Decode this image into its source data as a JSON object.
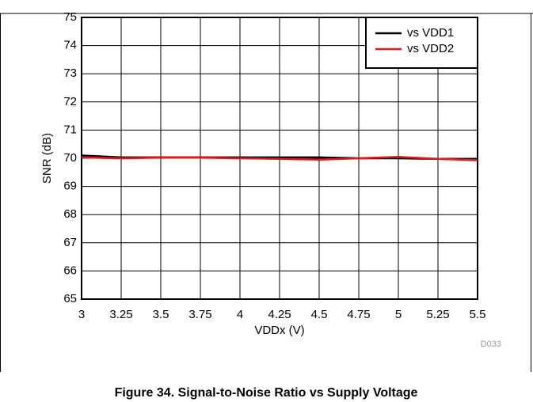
{
  "chart_data": {
    "type": "line",
    "caption": "Figure 34. Signal-to-Noise Ratio vs Supply Voltage",
    "xlabel": "VDDx (V)",
    "ylabel": "SNR (dB)",
    "note": "D033",
    "x": [
      3,
      3.25,
      3.5,
      3.75,
      4,
      4.25,
      4.5,
      4.75,
      5,
      5.25,
      5.5
    ],
    "series": [
      {
        "name": "vs VDD1",
        "color": "#000000",
        "values": [
          70.1,
          70.03,
          70.03,
          70.03,
          70.03,
          70.03,
          70.03,
          70.0,
          70.0,
          69.98,
          69.95
        ]
      },
      {
        "name": "vs VDD2",
        "color": "#e31a1c",
        "values": [
          70.03,
          70.0,
          70.02,
          70.02,
          70.0,
          69.98,
          69.95,
          70.0,
          70.05,
          69.98,
          69.93
        ]
      }
    ],
    "xlim": [
      3,
      5.5
    ],
    "xticks": [
      3,
      3.25,
      3.5,
      3.75,
      4,
      4.25,
      4.5,
      4.75,
      5,
      5.25,
      5.5
    ],
    "ylim": [
      65,
      75
    ],
    "yticks": [
      65,
      66,
      67,
      68,
      69,
      70,
      71,
      72,
      73,
      74,
      75
    ],
    "grid": true,
    "legend": "upper right"
  }
}
